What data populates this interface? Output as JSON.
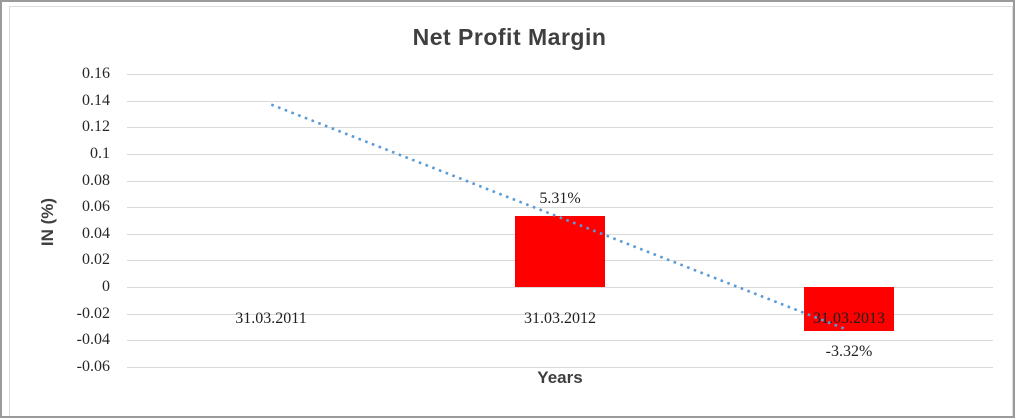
{
  "chart_data": {
    "type": "bar",
    "title": "Net Profit Margin",
    "xlabel": "Years",
    "ylabel": "IN (%)",
    "categories": [
      "31.03.2011",
      "31.03.2012",
      "31.03.2013"
    ],
    "series": [
      {
        "name": "Net Profit Margin",
        "type": "bar",
        "color": "#ff0000",
        "values": [
          null,
          0.0531,
          -0.0332
        ],
        "data_labels": [
          "",
          "5.31%",
          "-3.32%"
        ]
      },
      {
        "name": "trendline",
        "type": "dotted-line",
        "color": "#5b9bd5",
        "points": [
          {
            "category_index": 0,
            "value": 0.137
          },
          {
            "category_index": 1.99,
            "value": -0.0316
          }
        ]
      }
    ],
    "ytick_labels": [
      "0.16",
      "0.14",
      "0.12",
      "0.1",
      "0.08",
      "0.06",
      "0.04",
      "0.02",
      "0",
      "-0.02",
      "-0.04",
      "-0.06"
    ],
    "yticks": [
      0.16,
      0.14,
      0.12,
      0.1,
      0.08,
      0.06,
      0.04,
      0.02,
      0,
      -0.02,
      -0.04,
      -0.06
    ],
    "ylim": [
      -0.06,
      0.16
    ],
    "grid": true,
    "legend": "none"
  },
  "colors": {
    "bar": "#ff0000",
    "trendline": "#5b9bd5",
    "gridline": "#d9d9d9",
    "title_text": "#3f3f3f",
    "label_text": "#1f1f1f",
    "frame_border": "#9a9a9a"
  }
}
